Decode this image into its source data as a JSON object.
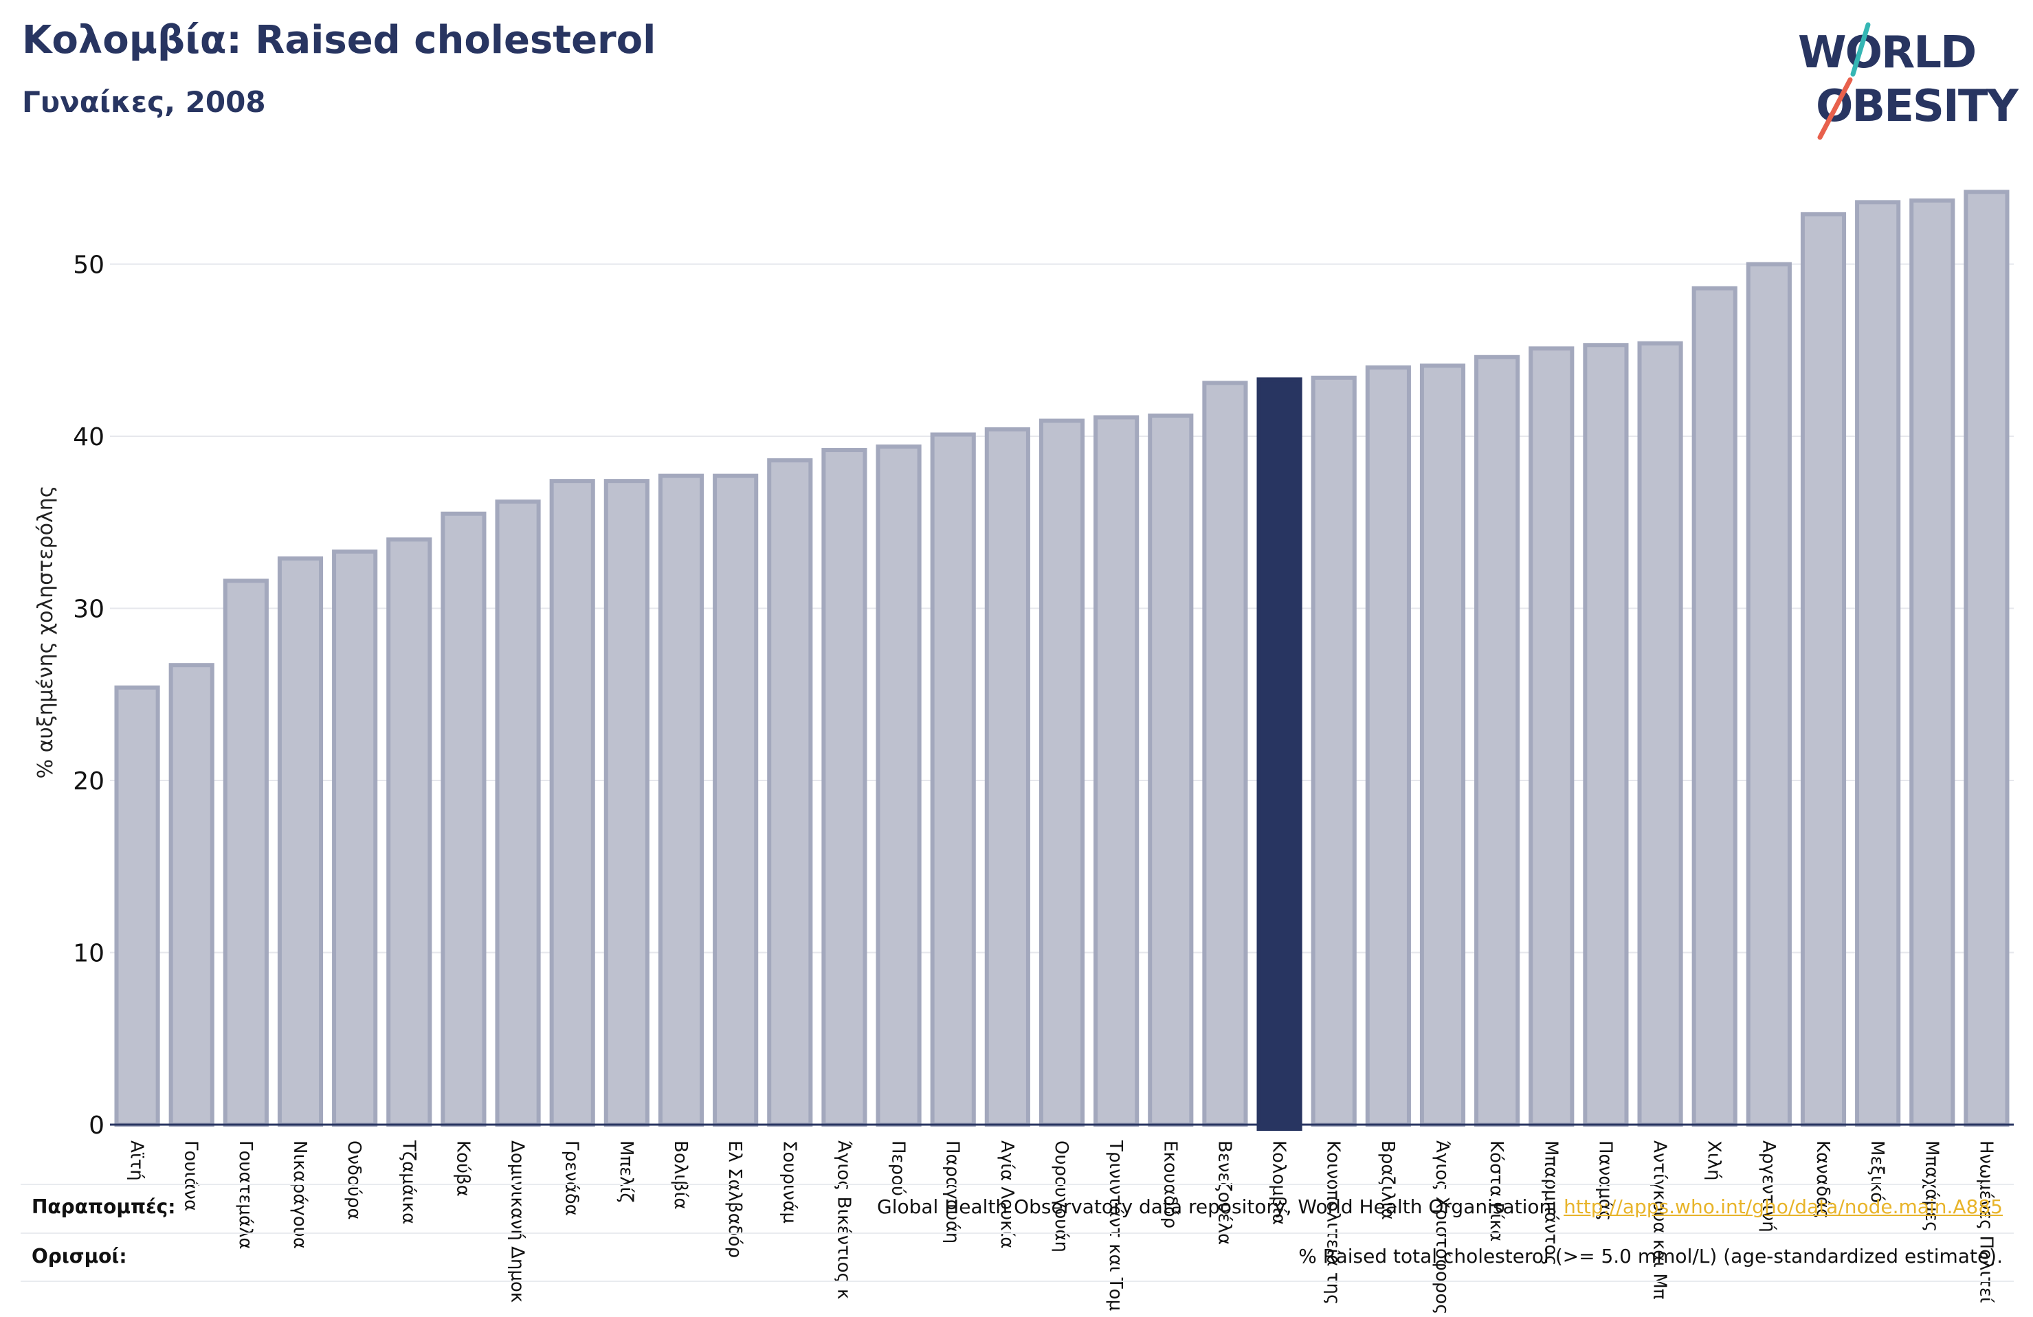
{
  "header": {
    "title": "Κολομβία: Raised cholesterol",
    "subtitle": "Γυναίκες, 2008"
  },
  "logo": {
    "line1": "WORLD",
    "line2": "OBESITY"
  },
  "colors": {
    "bar": "#bec1cf",
    "bar_edge": "#a3a8bd",
    "highlight": "#283561",
    "text": "#283561",
    "link": "#e8b42a"
  },
  "chart_data": {
    "type": "bar",
    "title": "Κολομβία: Raised cholesterol",
    "subtitle": "Γυναίκες, 2008",
    "ylabel": "% αυξημένης χοληστερόλης",
    "ylim": [
      0,
      55
    ],
    "yticks": [
      0,
      10,
      20,
      30,
      40,
      50
    ],
    "grid": true,
    "highlight": "Κολομβία",
    "categories": [
      "Αϊτή",
      "Γουιάνα",
      "Γουατεμάλα",
      "Νικαράγουα",
      "Ονδούρα",
      "Τζαμάικα",
      "Κούβα",
      "Δομινικανή Δημοκρατία",
      "Γρενάδα",
      "Μπελίζ",
      "Βολιβία",
      "Ελ Σαλβαδόρ",
      "Σουρινάμ",
      "Άγιος Βικέντιος και Γρεναδίνες",
      "Περού",
      "Παραγουάη",
      "Αγία Λουκία",
      "Ουρουγουάη",
      "Τρινιντάντ και Τομπάγκο",
      "Εκουαδόρ",
      "Βενεζουέλα",
      "Κολομβία",
      "Κοινοπολιτεία της Δομινίκας",
      "Βραζιλία",
      "Άγιος Χριστόφορος και Νέβις",
      "Κόστα Ρίκα",
      "Μπαρμπάντος",
      "Παναμάς",
      "Αντίγκουα και Μπαρμπούντα",
      "Χιλή",
      "Αργεντινή",
      "Καναδάς",
      "Μεξικό",
      "Μπαχάμες",
      "Ηνωμένες Πολιτείες"
    ],
    "display_labels": [
      "Αϊτή",
      "Γουιάνα",
      "Γουατεμάλα",
      "Νικαράγουα",
      "Ονδούρα",
      "Τζαμάικα",
      "Κούβα",
      "Δομινικανή Δημοκ",
      "Γρενάδα",
      "Μπελίζ",
      "Βολιβία",
      "Ελ Σαλβαδόρ",
      "Σουρινάμ",
      "Άγιος Βικέντιος κ",
      "Περού",
      "Παραγουάη",
      "Αγία Λουκία",
      "Ουρουγουάη",
      "Τρινιντάντ και Τομ",
      "Εκουαδόρ",
      "Βενεζουέλα",
      "Κολομβία",
      "Κοινοπολιτεία της",
      "Βραζιλία",
      "Άγιος Χριστόφορος",
      "Κόστα Ρίκα",
      "Μπαρμπάντος",
      "Παναμάς",
      "Αντίγκουα και Μπ",
      "Χιλή",
      "Αργεντινή",
      "Καναδάς",
      "Μεξικό",
      "Μπαχάμες",
      "Ηνωμένες Πολιτεί"
    ],
    "values": [
      25.4,
      26.7,
      31.6,
      32.9,
      33.3,
      34.0,
      35.5,
      36.2,
      37.4,
      37.4,
      37.7,
      37.7,
      38.6,
      39.2,
      39.4,
      40.1,
      40.4,
      40.9,
      41.1,
      41.2,
      43.1,
      43.3,
      43.4,
      44.0,
      44.1,
      44.6,
      45.1,
      45.3,
      45.4,
      48.6,
      50.0,
      52.9,
      53.6,
      53.7,
      54.2
    ]
  },
  "footer": {
    "sources_label": "Παραπομπές:",
    "sources_text": "Global Health Observatory data repository, World Health Organisation, ",
    "sources_link": "http://apps.who.int/gho/data/node.main.A885",
    "definitions_label": "Ορισμοί:",
    "definitions_text": "% Raised total cholesterol (>= 5.0 mmol/L) (age-standardized estimate)."
  }
}
